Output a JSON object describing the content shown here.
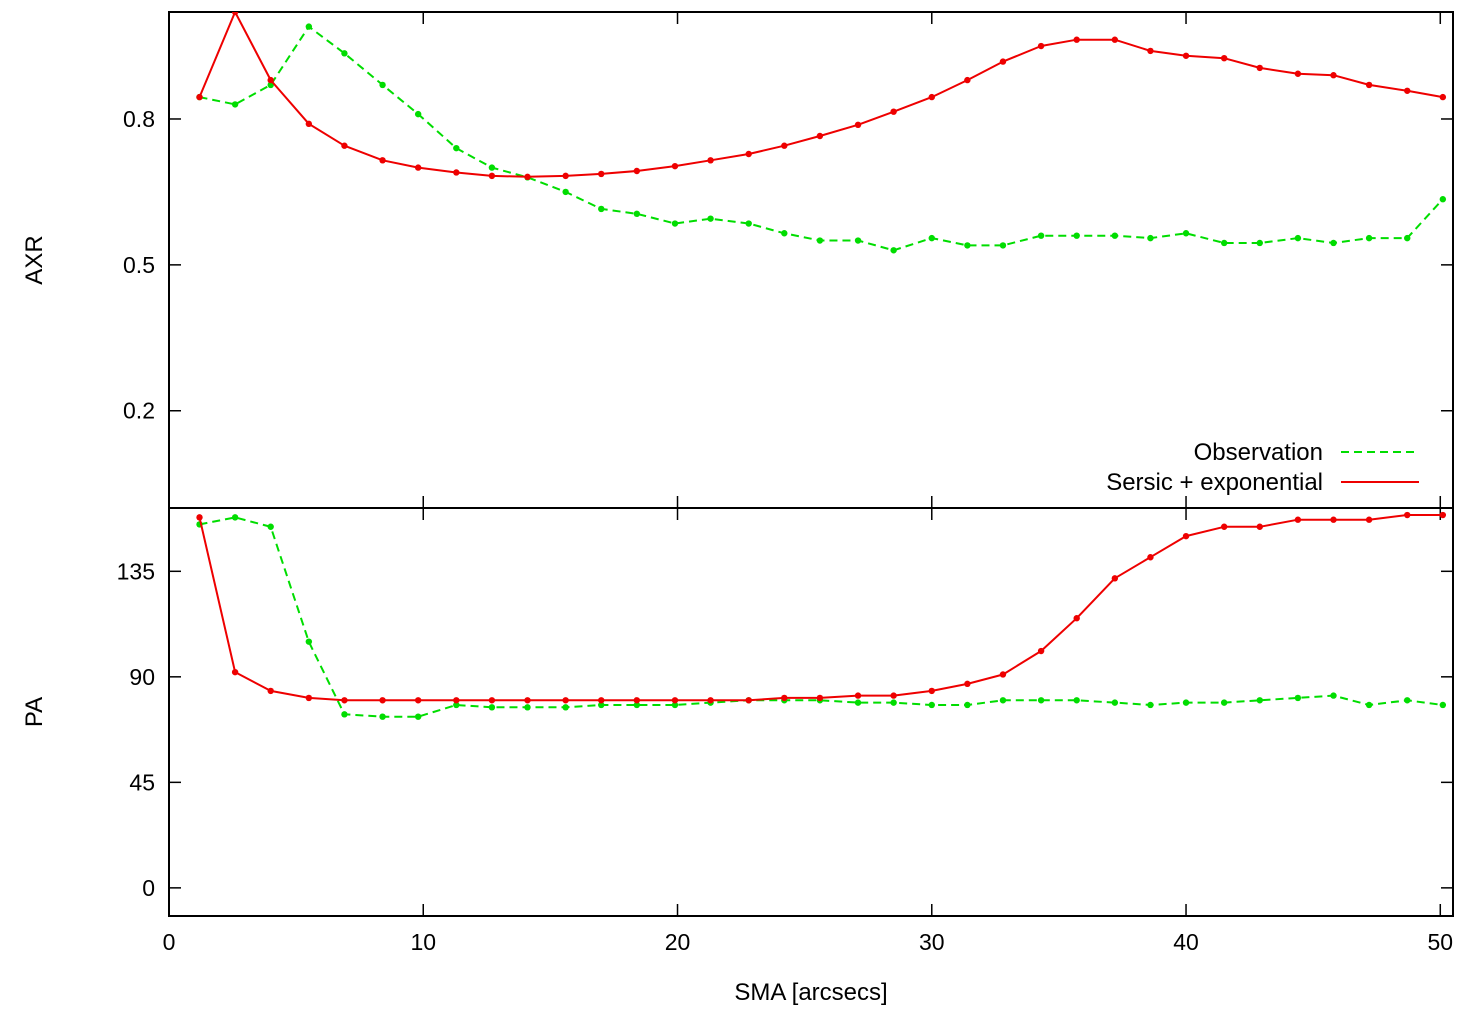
{
  "chart_data": [
    {
      "id": "axr-panel",
      "type": "line",
      "title": "",
      "xlabel": "",
      "ylabel": "AXR",
      "xlim": [
        0,
        50.5
      ],
      "ylim": [
        0.0,
        1.02
      ],
      "yticks": [
        0.2,
        0.5,
        0.8
      ],
      "ytick_labels": [
        "0.2",
        "0.5",
        "0.8"
      ],
      "xticks": [
        0,
        10,
        20,
        30,
        40,
        50
      ],
      "show_xtick_labels": false,
      "legend": {
        "position": "bottom-right"
      },
      "series": [
        {
          "name": "Observation",
          "color": "#00dd00",
          "style": "dashed",
          "x": [
            1.2,
            2.6,
            4.0,
            5.5,
            6.9,
            8.4,
            9.8,
            11.3,
            12.7,
            14.1,
            15.6,
            17.0,
            18.4,
            19.9,
            21.3,
            22.8,
            24.2,
            25.6,
            27.1,
            28.5,
            30.0,
            31.4,
            32.8,
            34.3,
            35.7,
            37.2,
            38.6,
            40.0,
            41.5,
            42.9,
            44.4,
            45.8,
            47.2,
            48.7,
            50.1
          ],
          "y": [
            0.845,
            0.83,
            0.87,
            0.99,
            0.935,
            0.87,
            0.81,
            0.74,
            0.7,
            0.68,
            0.65,
            0.615,
            0.605,
            0.585,
            0.595,
            0.585,
            0.565,
            0.55,
            0.55,
            0.53,
            0.555,
            0.54,
            0.54,
            0.56,
            0.56,
            0.56,
            0.555,
            0.565,
            0.545,
            0.545,
            0.555,
            0.545,
            0.555,
            0.555,
            0.635
          ]
        },
        {
          "name": "Sersic + exponential",
          "color": "#ee0000",
          "style": "solid",
          "x": [
            1.2,
            2.6,
            4.0,
            5.5,
            6.9,
            8.4,
            9.8,
            11.3,
            12.7,
            14.1,
            15.6,
            17.0,
            18.4,
            19.9,
            21.3,
            22.8,
            24.2,
            25.6,
            27.1,
            28.5,
            30.0,
            31.4,
            32.8,
            34.3,
            35.7,
            37.2,
            38.6,
            40.0,
            41.5,
            42.9,
            44.4,
            45.8,
            47.2,
            48.7,
            50.1
          ],
          "y": [
            0.845,
            1.02,
            0.88,
            0.79,
            0.745,
            0.715,
            0.7,
            0.69,
            0.683,
            0.681,
            0.683,
            0.687,
            0.693,
            0.703,
            0.715,
            0.728,
            0.745,
            0.765,
            0.788,
            0.815,
            0.845,
            0.88,
            0.918,
            0.95,
            0.963,
            0.963,
            0.94,
            0.93,
            0.925,
            0.905,
            0.893,
            0.89,
            0.87,
            0.858,
            0.845
          ]
        }
      ]
    },
    {
      "id": "pa-panel",
      "type": "line",
      "title": "",
      "xlabel": "SMA [arcsecs]",
      "ylabel": "PA",
      "xlim": [
        0,
        50.5
      ],
      "ylim": [
        -12,
        162
      ],
      "yticks": [
        0,
        45,
        90,
        135
      ],
      "ytick_labels": [
        "0",
        "45",
        "90",
        "135"
      ],
      "xticks": [
        0,
        10,
        20,
        30,
        40,
        50
      ],
      "xtick_labels": [
        "0",
        "10",
        "20",
        "30",
        "40",
        "50"
      ],
      "series": [
        {
          "name": "Observation",
          "color": "#00dd00",
          "style": "dashed",
          "x": [
            1.2,
            2.6,
            4.0,
            5.5,
            6.9,
            8.4,
            9.8,
            11.3,
            12.7,
            14.1,
            15.6,
            17.0,
            18.4,
            19.9,
            21.3,
            22.8,
            24.2,
            25.6,
            27.1,
            28.5,
            30.0,
            31.4,
            32.8,
            34.3,
            35.7,
            37.2,
            38.6,
            40.0,
            41.5,
            42.9,
            44.4,
            45.8,
            47.2,
            48.7,
            50.1
          ],
          "y": [
            155,
            158,
            154,
            105,
            74,
            73,
            73,
            78,
            77,
            77,
            77,
            78,
            78,
            78,
            79,
            80,
            80,
            80,
            79,
            79,
            78,
            78,
            80,
            80,
            80,
            79,
            78,
            79,
            79,
            80,
            81,
            82,
            78,
            80,
            78
          ]
        },
        {
          "name": "Sersic + exponential",
          "color": "#ee0000",
          "style": "solid",
          "x": [
            1.2,
            2.6,
            4.0,
            5.5,
            6.9,
            8.4,
            9.8,
            11.3,
            12.7,
            14.1,
            15.6,
            17.0,
            18.4,
            19.9,
            21.3,
            22.8,
            24.2,
            25.6,
            27.1,
            28.5,
            30.0,
            31.4,
            32.8,
            34.3,
            35.7,
            37.2,
            38.6,
            40.0,
            41.5,
            42.9,
            44.4,
            45.8,
            47.2,
            48.7,
            50.1
          ],
          "y": [
            158,
            92,
            84,
            81,
            80,
            80,
            80,
            80,
            80,
            80,
            80,
            80,
            80,
            80,
            80,
            80,
            81,
            81,
            82,
            82,
            84,
            87,
            91,
            101,
            115,
            132,
            141,
            150,
            154,
            154,
            157,
            157,
            157,
            159,
            159
          ]
        }
      ]
    }
  ]
}
